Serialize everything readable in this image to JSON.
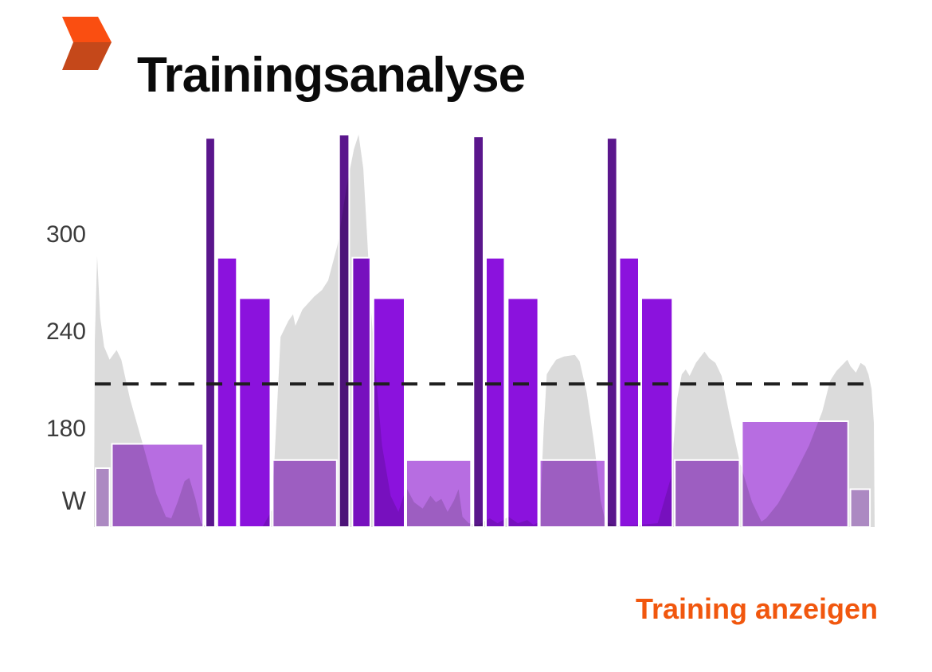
{
  "header": {
    "title": "Trainingsanalyse",
    "logo": {
      "name": "chevron-logo",
      "top_color": "#FA4E11",
      "bottom_color": "#C5481A"
    }
  },
  "footer": {
    "link_label": "Training anzeigen",
    "link_color": "#F1570E"
  },
  "chart_data": {
    "type": "area",
    "subtype": "power-trace area with interval bars (combo area+bar)",
    "title": "Trainingsanalyse",
    "xlabel": "",
    "ylabel": "W",
    "unit": "W",
    "grid": false,
    "legend_position": "none",
    "y_axis": {
      "ticks": [
        300,
        240,
        180
      ],
      "unit_label": "W",
      "ylim_w": [
        119,
        363
      ]
    },
    "x_axis": {
      "visible": false
    },
    "threshold_w": 207,
    "colors": {
      "gray_area": "#DBDBDB",
      "bar_max": "#5A168C",
      "bar_high": "#8B12DD",
      "bar_mid": "#B76DE1",
      "bar_low": "#C9A0E2",
      "threshold_line": "#1F1F1F",
      "axis_text": "#3C3C3C",
      "bar_gap_stroke": "#FFFFFF"
    },
    "power_trace": {
      "name": "power",
      "points": [
        [
          0.0,
          119
        ],
        [
          0.001,
          233
        ],
        [
          0.004,
          286
        ],
        [
          0.008,
          248
        ],
        [
          0.013,
          230
        ],
        [
          0.02,
          222
        ],
        [
          0.029,
          228
        ],
        [
          0.035,
          222
        ],
        [
          0.046,
          198
        ],
        [
          0.063,
          169
        ],
        [
          0.08,
          139
        ],
        [
          0.092,
          125
        ],
        [
          0.099,
          124
        ],
        [
          0.107,
          134
        ],
        [
          0.116,
          147
        ],
        [
          0.122,
          149
        ],
        [
          0.13,
          136
        ],
        [
          0.137,
          121
        ],
        [
          0.145,
          119
        ],
        [
          0.216,
          119
        ],
        [
          0.228,
          129
        ],
        [
          0.239,
          236
        ],
        [
          0.249,
          246
        ],
        [
          0.255,
          250
        ],
        [
          0.258,
          243
        ],
        [
          0.267,
          253
        ],
        [
          0.282,
          261
        ],
        [
          0.292,
          265
        ],
        [
          0.3,
          271
        ],
        [
          0.312,
          293
        ],
        [
          0.324,
          330
        ],
        [
          0.333,
          352
        ],
        [
          0.339,
          361
        ],
        [
          0.345,
          340
        ],
        [
          0.35,
          297
        ],
        [
          0.355,
          252
        ],
        [
          0.361,
          213
        ],
        [
          0.369,
          169
        ],
        [
          0.38,
          138
        ],
        [
          0.39,
          128
        ],
        [
          0.4,
          143
        ],
        [
          0.41,
          134
        ],
        [
          0.421,
          130
        ],
        [
          0.431,
          138
        ],
        [
          0.438,
          134
        ],
        [
          0.445,
          136
        ],
        [
          0.453,
          128
        ],
        [
          0.461,
          135
        ],
        [
          0.467,
          142
        ],
        [
          0.472,
          125
        ],
        [
          0.48,
          121
        ],
        [
          0.492,
          120
        ],
        [
          0.507,
          124
        ],
        [
          0.517,
          121
        ],
        [
          0.531,
          125
        ],
        [
          0.543,
          121
        ],
        [
          0.555,
          123
        ],
        [
          0.563,
          120
        ],
        [
          0.571,
          122
        ],
        [
          0.576,
          179
        ],
        [
          0.58,
          213
        ],
        [
          0.585,
          217
        ],
        [
          0.592,
          222
        ],
        [
          0.602,
          224
        ],
        [
          0.616,
          225
        ],
        [
          0.622,
          221
        ],
        [
          0.631,
          202
        ],
        [
          0.641,
          169
        ],
        [
          0.649,
          135
        ],
        [
          0.655,
          122
        ],
        [
          0.67,
          119
        ],
        [
          0.696,
          120
        ],
        [
          0.722,
          121
        ],
        [
          0.739,
          149
        ],
        [
          0.747,
          198
        ],
        [
          0.753,
          213
        ],
        [
          0.758,
          216
        ],
        [
          0.763,
          212
        ],
        [
          0.771,
          220
        ],
        [
          0.782,
          227
        ],
        [
          0.788,
          223
        ],
        [
          0.796,
          220
        ],
        [
          0.804,
          212
        ],
        [
          0.814,
          188
        ],
        [
          0.827,
          159
        ],
        [
          0.843,
          134
        ],
        [
          0.855,
          122
        ],
        [
          0.861,
          124
        ],
        [
          0.876,
          133
        ],
        [
          0.896,
          150
        ],
        [
          0.916,
          169
        ],
        [
          0.933,
          190
        ],
        [
          0.943,
          209
        ],
        [
          0.951,
          215
        ],
        [
          0.959,
          219
        ],
        [
          0.965,
          222
        ],
        [
          0.969,
          218
        ],
        [
          0.976,
          214
        ],
        [
          0.982,
          220
        ],
        [
          0.988,
          218
        ],
        [
          0.992,
          213
        ],
        [
          0.996,
          204
        ],
        [
          0.999,
          183
        ],
        [
          1.0,
          119
        ]
      ]
    },
    "intervals": [
      {
        "start": 0.002,
        "end": 0.02,
        "watts": 155,
        "level": "low"
      },
      {
        "start": 0.023,
        "end": 0.14,
        "watts": 170,
        "level": "mid"
      },
      {
        "start": 0.229,
        "end": 0.311,
        "watts": 160,
        "level": "mid"
      },
      {
        "start": 0.4,
        "end": 0.483,
        "watts": 160,
        "level": "mid"
      },
      {
        "start": 0.571,
        "end": 0.655,
        "watts": 160,
        "level": "mid"
      },
      {
        "start": 0.744,
        "end": 0.827,
        "watts": 160,
        "level": "mid"
      },
      {
        "start": 0.83,
        "end": 0.966,
        "watts": 184,
        "level": "mid"
      },
      {
        "start": 0.969,
        "end": 0.994,
        "watts": 142,
        "level": "low"
      },
      {
        "start": 0.158,
        "end": 0.183,
        "watts": 285,
        "level": "high"
      },
      {
        "start": 0.331,
        "end": 0.354,
        "watts": 285,
        "level": "high"
      },
      {
        "start": 0.502,
        "end": 0.526,
        "watts": 285,
        "level": "high"
      },
      {
        "start": 0.673,
        "end": 0.698,
        "watts": 285,
        "level": "high"
      },
      {
        "start": 0.186,
        "end": 0.226,
        "watts": 260,
        "level": "high"
      },
      {
        "start": 0.358,
        "end": 0.398,
        "watts": 260,
        "level": "high"
      },
      {
        "start": 0.53,
        "end": 0.569,
        "watts": 260,
        "level": "high"
      },
      {
        "start": 0.701,
        "end": 0.741,
        "watts": 260,
        "level": "high"
      },
      {
        "start": 0.143,
        "end": 0.155,
        "watts": 359,
        "level": "max"
      },
      {
        "start": 0.314,
        "end": 0.327,
        "watts": 361,
        "level": "max"
      },
      {
        "start": 0.486,
        "end": 0.499,
        "watts": 360,
        "level": "max"
      },
      {
        "start": 0.657,
        "end": 0.67,
        "watts": 359,
        "level": "max"
      }
    ]
  }
}
